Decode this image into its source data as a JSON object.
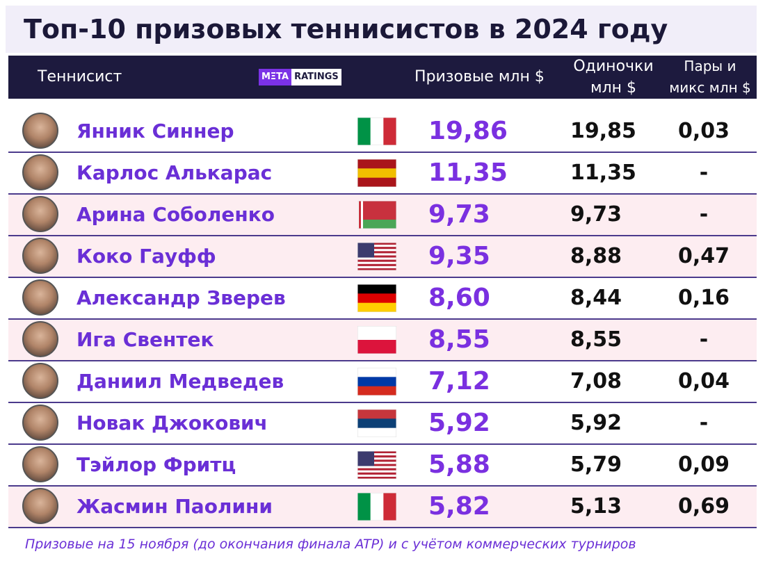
{
  "header": {
    "title": "Топ-10 призовых теннисистов в 2024 году"
  },
  "table": {
    "columns": [
      "Теннисист",
      "Призовые млн $",
      "Одиночки млн $",
      "Пары и микс млн $"
    ],
    "logo": [
      "MΞTA",
      "RATINGS"
    ],
    "rows": [
      [
        "Янник Синнер",
        "19,86",
        "19,85",
        "0,03"
      ],
      [
        "Карлос Алькарас",
        "11,35",
        "11,35",
        "-"
      ],
      [
        "Арина Соболенко",
        "9,73",
        "9,73",
        "-"
      ],
      [
        "Коко Гауфф",
        "9,35",
        "8,88",
        "0,47"
      ],
      [
        "Александр Зверев",
        "8,60",
        "8,44",
        "0,16"
      ],
      [
        "Ига Свентек",
        "8,55",
        "8,55",
        "-"
      ],
      [
        "Даниил Медведев",
        "7,12",
        "7,08",
        "0,04"
      ],
      [
        "Новак Джокович",
        "5,92",
        "5,92",
        "-"
      ],
      [
        "Тэйлор Фритц",
        "5,88",
        "5,79",
        "0,09"
      ],
      [
        "Жасмин Паолини",
        "5,82",
        "5,13",
        "0,69"
      ]
    ]
  },
  "footer": {
    "note": "Призовые на 15 ноября (до окончания финала ATP) и с учётом коммерческих турниров"
  }
}
